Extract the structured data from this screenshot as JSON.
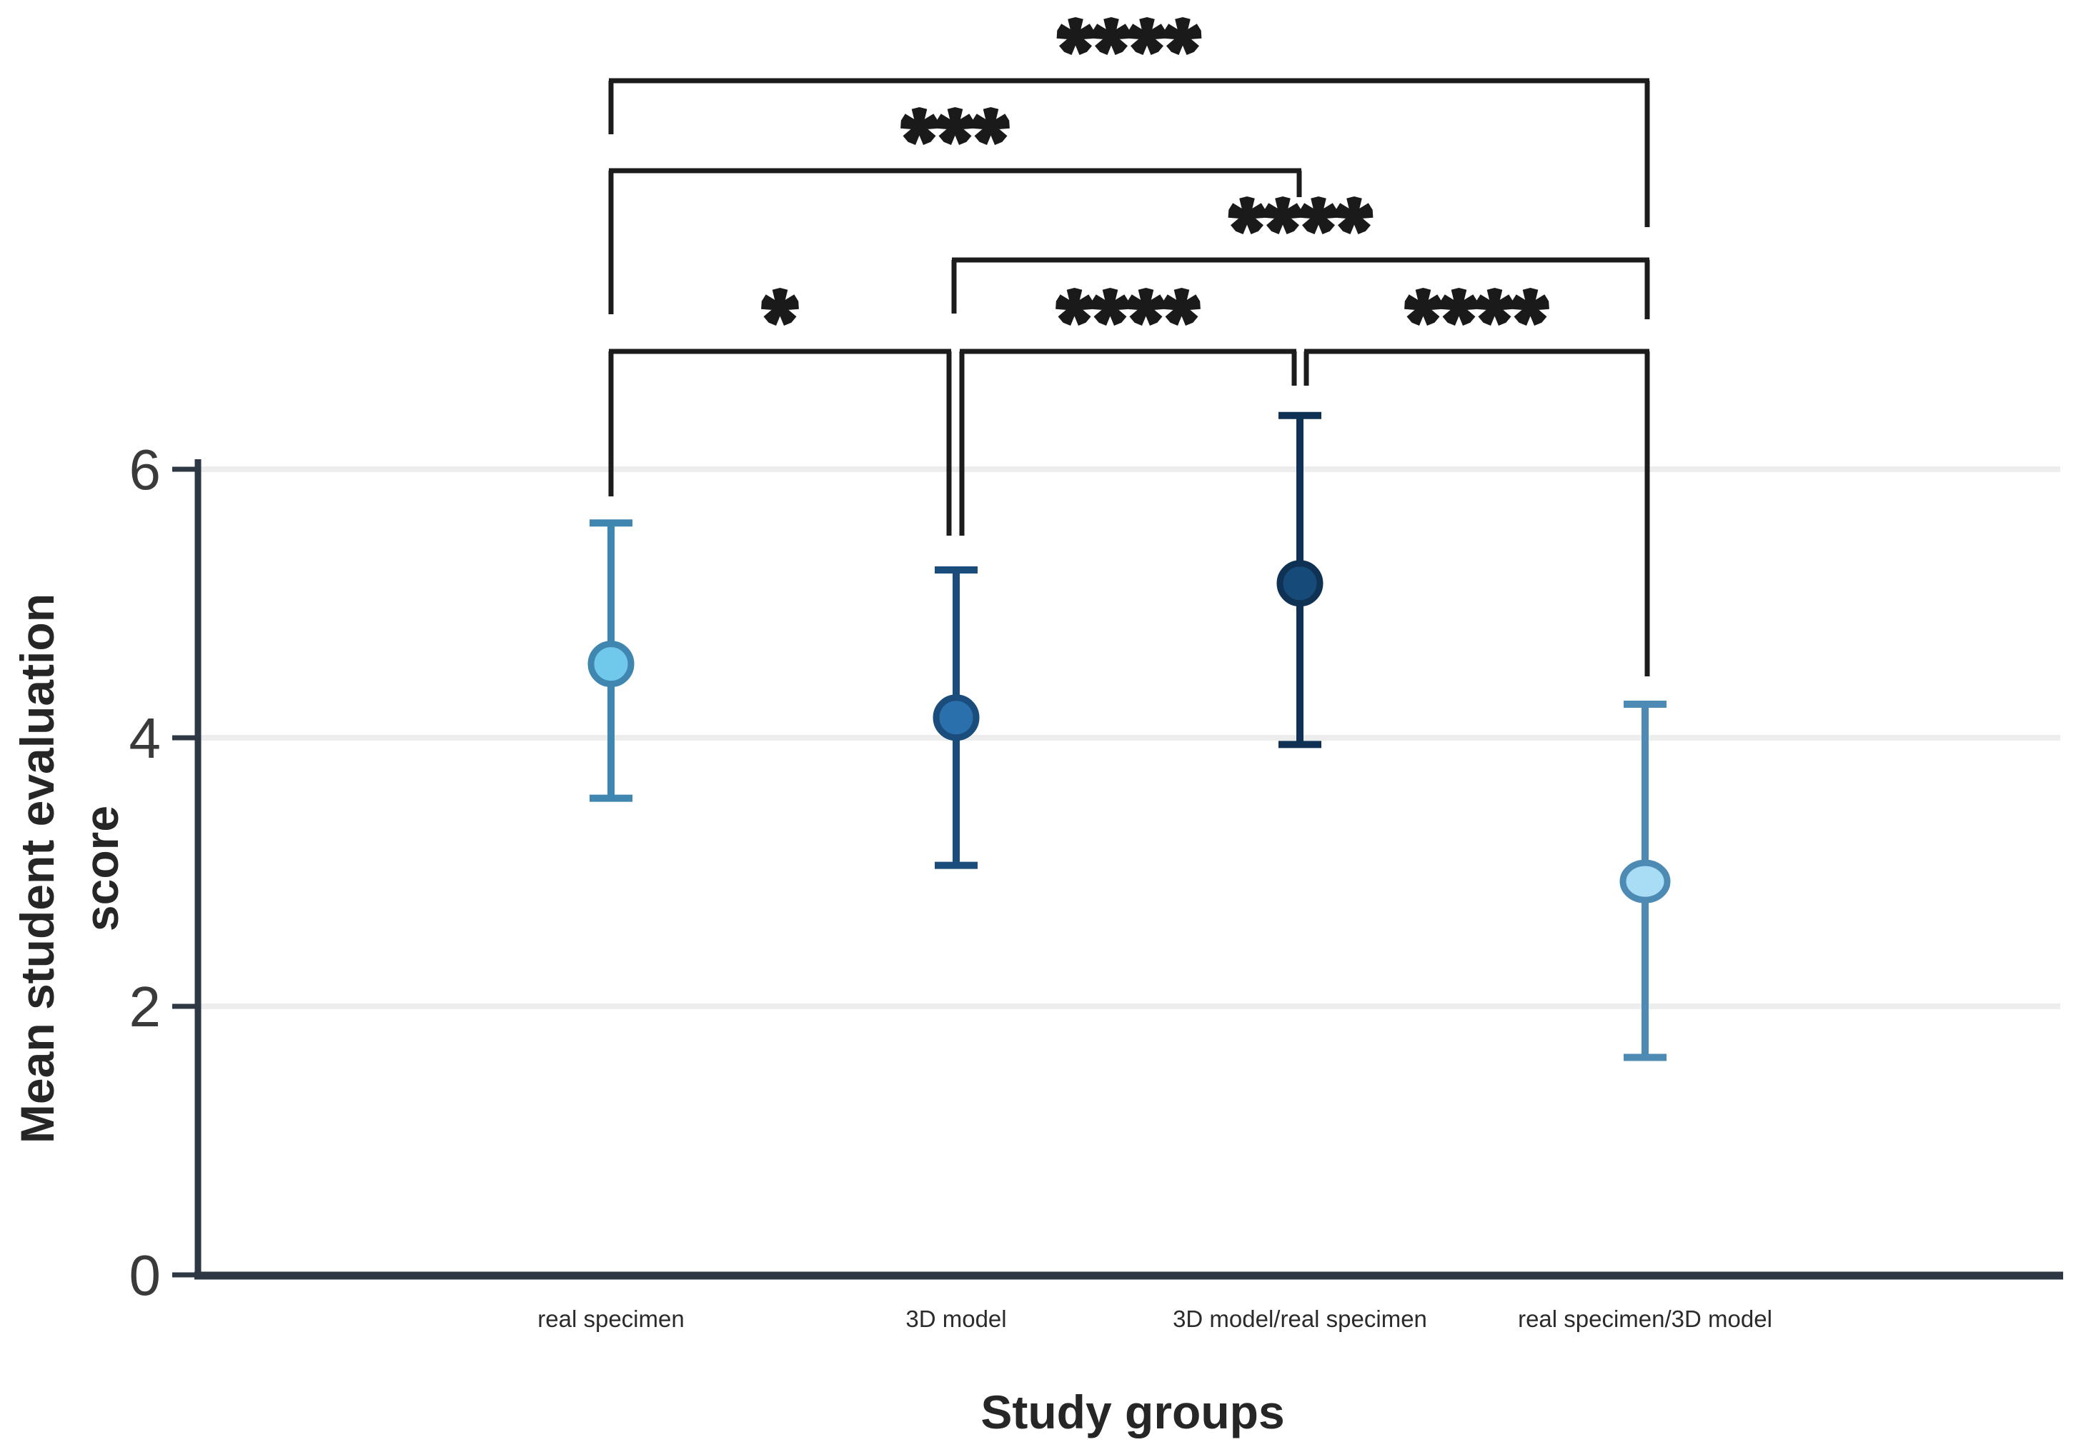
{
  "chart_data": {
    "type": "scatter",
    "subtype": "point-estimates-with-error-bars",
    "title": "",
    "xlabel": "Study groups",
    "ylabel": "Mean student evaluation score",
    "ylabel_lines": [
      "Mean student evaluation",
      "score"
    ],
    "y_ticks": [
      0,
      2,
      4,
      6
    ],
    "ylim": [
      0,
      6
    ],
    "grid": "horizontal",
    "legend": "none",
    "categories": [
      "real specimen",
      "3D model",
      "3D model/real specimen",
      "real specimen/3D model"
    ],
    "points": [
      {
        "category": "real specimen",
        "mean": 4.55,
        "ci_low": 3.55,
        "ci_high": 5.6,
        "fill": "#70c8ea",
        "stroke": "#3f87b0"
      },
      {
        "category": "3D model",
        "mean": 4.15,
        "ci_low": 3.05,
        "ci_high": 5.25,
        "fill": "#2a70ad",
        "stroke": "#1a4d7c"
      },
      {
        "category": "3D model/real specimen",
        "mean": 5.15,
        "ci_low": 3.95,
        "ci_high": 6.4,
        "fill": "#164a78",
        "stroke": "#0f3254"
      },
      {
        "category": "real specimen/3D model",
        "mean": 2.93,
        "ci_low": 1.62,
        "ci_high": 4.25,
        "fill": "#a9dcf5",
        "stroke": "#4d8bb4"
      }
    ],
    "significance": [
      {
        "from": "real specimen",
        "to": "real specimen/3D model",
        "label": "****"
      },
      {
        "from": "real specimen",
        "to": "3D model/real specimen",
        "label": "***"
      },
      {
        "from": "3D model",
        "to": "real specimen/3D model",
        "label": "****"
      },
      {
        "from": "real specimen",
        "to": "3D model",
        "label": "*"
      },
      {
        "from": "3D model",
        "to": "3D model/real specimen",
        "label": "****"
      },
      {
        "from": "3D model/real specimen",
        "to": "real specimen/3D model",
        "label": "****"
      }
    ]
  },
  "colors": {
    "background": "#ffffff",
    "axis": "#2e3744",
    "grid": "#ededed",
    "bracket": "#1c1c1c",
    "star": "#1a1a1a",
    "tick_label": "#3a3a3a",
    "category_label": "#2b2b2b",
    "title": "#262626"
  }
}
